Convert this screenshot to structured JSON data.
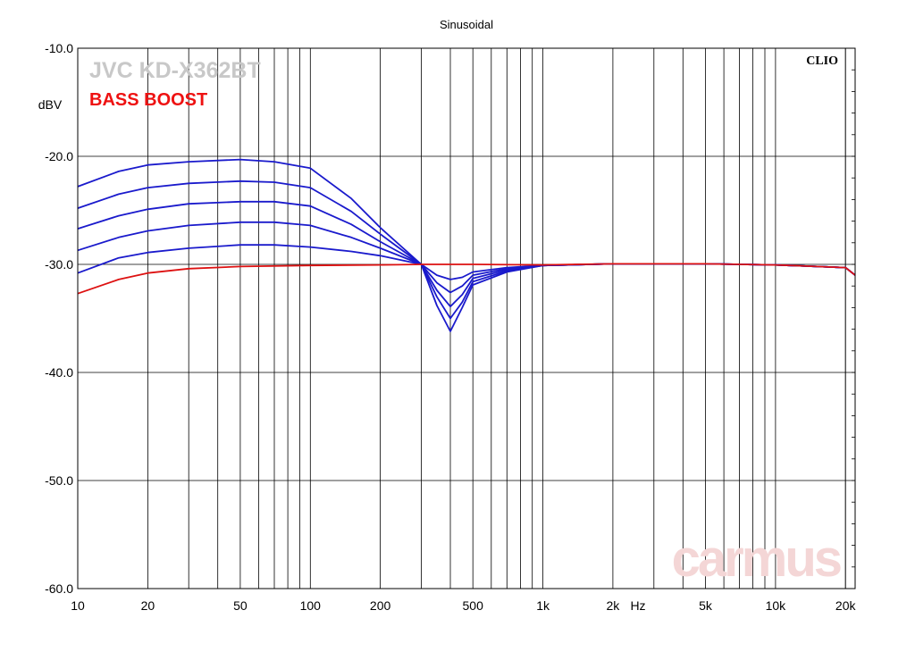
{
  "chart_data": {
    "type": "line",
    "title": "Sinusoidal",
    "ylabel": "dBV",
    "xlabel": "Hz",
    "x_scale": "log",
    "xlim": [
      10,
      22000
    ],
    "ylim": [
      -60,
      -10
    ],
    "grid": true,
    "x_ticks": [
      10,
      20,
      50,
      100,
      200,
      500,
      1000,
      2000,
      5000,
      10000,
      20000
    ],
    "x_tick_labels": [
      "10",
      "20",
      "50",
      "100",
      "200",
      "500",
      "1k",
      "2k",
      "5k",
      "10k",
      "20k"
    ],
    "y_ticks": [
      -10,
      -20,
      -30,
      -40,
      -50,
      -60
    ],
    "y_tick_labels": [
      "-10.0",
      "-20.0",
      "-30.0",
      "-40.0",
      "-50.0",
      "-60.0"
    ],
    "annotations": {
      "model": "JVC KD-X362BT",
      "mode": "BASS BOOST",
      "brand": "CLIO",
      "watermark": "carmus"
    },
    "series": [
      {
        "color": "#dd1111",
        "x": [
          10,
          15,
          20,
          30,
          50,
          100,
          200,
          300,
          500,
          1000,
          2000,
          5000,
          10000,
          20000,
          22000
        ],
        "y": [
          -32.7,
          -31.4,
          -30.8,
          -30.4,
          -30.2,
          -30.1,
          -30.05,
          -30.0,
          -30.0,
          -30.05,
          -29.95,
          -29.95,
          -30.05,
          -30.3,
          -31.0
        ]
      },
      {
        "color": "#1a1acc",
        "x": [
          10,
          15,
          20,
          30,
          50,
          70,
          100,
          150,
          200,
          300,
          350,
          400,
          450,
          500,
          700,
          1000,
          2000,
          5000,
          10000,
          20000,
          22000
        ],
        "y": [
          -30.8,
          -29.4,
          -28.9,
          -28.5,
          -28.2,
          -28.2,
          -28.4,
          -28.8,
          -29.2,
          -30.0,
          -31.0,
          -31.4,
          -31.2,
          -30.7,
          -30.3,
          -30.1,
          -29.95,
          -29.95,
          -30.05,
          -30.3,
          -31.0
        ]
      },
      {
        "color": "#1a1acc",
        "x": [
          10,
          15,
          20,
          30,
          50,
          70,
          100,
          150,
          200,
          300,
          350,
          400,
          450,
          500,
          700,
          1000,
          2000,
          5000,
          10000,
          20000,
          22000
        ],
        "y": [
          -28.7,
          -27.5,
          -26.9,
          -26.4,
          -26.1,
          -26.1,
          -26.4,
          -27.5,
          -28.5,
          -30.0,
          -31.7,
          -32.6,
          -32.0,
          -31.0,
          -30.4,
          -30.1,
          -29.95,
          -29.95,
          -30.05,
          -30.3,
          -31.0
        ]
      },
      {
        "color": "#1a1acc",
        "x": [
          10,
          15,
          20,
          30,
          50,
          70,
          100,
          150,
          200,
          300,
          350,
          400,
          450,
          500,
          700,
          1000,
          2000,
          5000,
          10000,
          20000,
          22000
        ],
        "y": [
          -26.7,
          -25.5,
          -24.9,
          -24.4,
          -24.2,
          -24.2,
          -24.6,
          -26.3,
          -27.9,
          -30.0,
          -32.4,
          -33.9,
          -32.8,
          -31.3,
          -30.5,
          -30.1,
          -29.95,
          -29.95,
          -30.05,
          -30.3,
          -31.0
        ]
      },
      {
        "color": "#1a1acc",
        "x": [
          10,
          15,
          20,
          30,
          50,
          70,
          100,
          150,
          200,
          300,
          350,
          400,
          450,
          500,
          700,
          1000,
          2000,
          5000,
          10000,
          20000,
          22000
        ],
        "y": [
          -24.8,
          -23.5,
          -22.9,
          -22.5,
          -22.3,
          -22.4,
          -22.9,
          -25.1,
          -27.2,
          -30.0,
          -33.0,
          -35.0,
          -33.5,
          -31.6,
          -30.6,
          -30.1,
          -29.95,
          -29.95,
          -30.05,
          -30.3,
          -31.0
        ]
      },
      {
        "color": "#1a1acc",
        "x": [
          10,
          15,
          20,
          30,
          50,
          70,
          100,
          150,
          200,
          300,
          350,
          400,
          450,
          500,
          700,
          1000,
          2000,
          5000,
          10000,
          20000,
          22000
        ],
        "y": [
          -22.8,
          -21.4,
          -20.8,
          -20.5,
          -20.3,
          -20.5,
          -21.1,
          -23.9,
          -26.6,
          -30.0,
          -33.8,
          -36.2,
          -34.0,
          -31.9,
          -30.7,
          -30.1,
          -29.95,
          -29.95,
          -30.05,
          -30.3,
          -31.0
        ]
      }
    ]
  }
}
